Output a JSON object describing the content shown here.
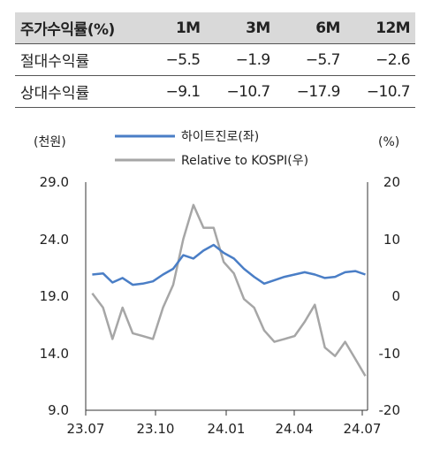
{
  "table": {
    "header": [
      "주가수익률(%)",
      "1M",
      "3M",
      "6M",
      "12M"
    ],
    "rows": [
      {
        "label": "절대수익률",
        "values": [
          "−5.5",
          "−1.9",
          "−5.7",
          "−2.6"
        ]
      },
      {
        "label": "상대수익률",
        "values": [
          "−9.1",
          "−10.7",
          "−17.9",
          "−10.7"
        ]
      }
    ]
  },
  "chart_data": {
    "type": "line",
    "left_unit": "(천원)",
    "right_unit": "(%)",
    "x_ticks": [
      "23.07",
      "23.10",
      "24.01",
      "24.04",
      "24.07"
    ],
    "y_left": {
      "ticks": [
        "29.0",
        "24.0",
        "19.0",
        "14.0",
        "9.0"
      ],
      "lim": [
        9,
        29
      ]
    },
    "y_right": {
      "ticks": [
        "20",
        "10",
        "0",
        "-10",
        "-20"
      ],
      "lim": [
        -20,
        20
      ]
    },
    "legend_placement": "top",
    "series": [
      {
        "name": "하이트진로(좌)",
        "axis": "left",
        "color": "#4a7ec6",
        "x": [
          "2023-07-10",
          "2023-07-25",
          "2023-08-07",
          "2023-08-21",
          "2023-09-04",
          "2023-09-18",
          "2023-10-02",
          "2023-10-16",
          "2023-10-30",
          "2023-11-13",
          "2023-11-27",
          "2023-12-11",
          "2023-12-25",
          "2024-01-08",
          "2024-01-22",
          "2024-02-05",
          "2024-02-19",
          "2024-03-04",
          "2024-03-18",
          "2024-04-01",
          "2024-04-15",
          "2024-04-29",
          "2024-05-13",
          "2024-05-27",
          "2024-06-10",
          "2024-06-24",
          "2024-07-08",
          "2024-07-22"
        ],
        "values": [
          20.9,
          21.0,
          20.2,
          20.6,
          20.0,
          20.1,
          20.3,
          20.9,
          21.4,
          22.6,
          22.3,
          23.0,
          23.5,
          22.8,
          22.3,
          21.4,
          20.7,
          20.1,
          20.4,
          20.7,
          20.9,
          21.1,
          20.9,
          20.6,
          20.7,
          21.1,
          21.2,
          20.9
        ]
      },
      {
        "name": "Relative to KOSPI(우)",
        "axis": "right",
        "color": "#a6a6a6",
        "x": [
          "2023-07-10",
          "2023-07-25",
          "2023-08-07",
          "2023-08-21",
          "2023-09-04",
          "2023-09-18",
          "2023-10-02",
          "2023-10-16",
          "2023-10-30",
          "2023-11-13",
          "2023-11-27",
          "2023-12-11",
          "2023-12-25",
          "2024-01-08",
          "2024-01-22",
          "2024-02-05",
          "2024-02-19",
          "2024-03-04",
          "2024-03-18",
          "2024-04-01",
          "2024-04-15",
          "2024-04-29",
          "2024-05-13",
          "2024-05-27",
          "2024-06-10",
          "2024-06-24",
          "2024-07-08",
          "2024-07-22"
        ],
        "values": [
          0.5,
          -2.0,
          -7.5,
          -2.0,
          -6.5,
          -7.0,
          -7.5,
          -2.0,
          2.0,
          10.0,
          16.0,
          12.0,
          12.0,
          6.0,
          4.0,
          -0.5,
          -2.0,
          -6.0,
          -8.0,
          -7.5,
          -7.0,
          -4.5,
          -1.5,
          -9.0,
          -10.5,
          -8.0,
          -11.0,
          -14.0
        ]
      }
    ]
  }
}
